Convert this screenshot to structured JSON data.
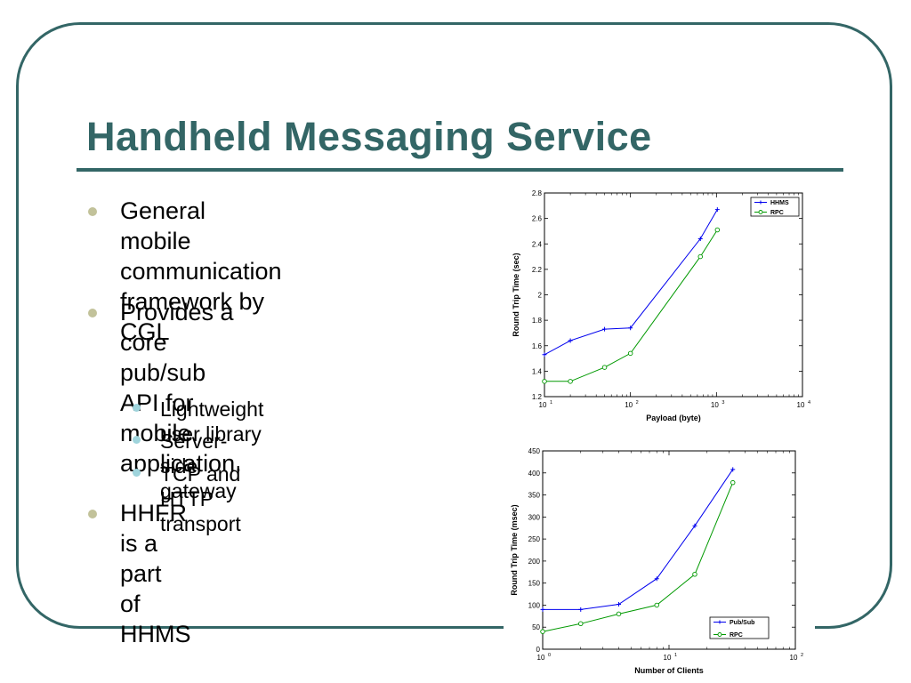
{
  "slide": {
    "title": "Handheld Messaging Service",
    "bullets": [
      {
        "lines": [
          "General mobile",
          "communication",
          "framework by CGL"
        ]
      },
      {
        "lines": [
          "Provides a core pub/sub",
          "API for mobile",
          "application."
        ]
      },
      {
        "lines": [
          "HHFR is a part",
          "of HHMS"
        ]
      }
    ],
    "subbullets": [
      "Lightweight user library",
      "Server-side gateway",
      "TCP and HTTP transport"
    ]
  },
  "colors": {
    "theme": "#336666",
    "bullet": "#c2c29a",
    "subbullet": "#9fd4dc",
    "series_blue": "#0000ee",
    "series_green": "#009900"
  },
  "chart_data": [
    {
      "type": "line",
      "title": "",
      "xlabel": "Payload (byte)",
      "ylabel": "Round Trip Time (sec)",
      "xscale": "log",
      "xlim": [
        10,
        10000
      ],
      "ylim": [
        1.2,
        2.8
      ],
      "x_ticks": [
        "10",
        "10",
        "10",
        "10"
      ],
      "x_tick_exps": [
        "1",
        "2",
        "3",
        "4"
      ],
      "y_ticks": [
        "1.2",
        "1.4",
        "1.6",
        "1.8",
        "2",
        "2.2",
        "2.4",
        "2.6",
        "2.8"
      ],
      "legend": "top-right",
      "series": [
        {
          "name": "HHMS",
          "marker": "plus",
          "x": [
            10,
            20,
            50,
            100,
            650,
            1024
          ],
          "y": [
            1.53,
            1.64,
            1.73,
            1.74,
            2.44,
            2.67
          ]
        },
        {
          "name": "RPC",
          "marker": "circle",
          "x": [
            10,
            20,
            50,
            100,
            650,
            1024
          ],
          "y": [
            1.32,
            1.32,
            1.43,
            1.54,
            2.3,
            2.51
          ]
        }
      ]
    },
    {
      "type": "line",
      "title": "",
      "xlabel": "Number of Clients",
      "ylabel": "Round Trip Time (msec)",
      "xscale": "log",
      "xlim": [
        1,
        100
      ],
      "ylim": [
        0,
        450
      ],
      "x_ticks": [
        "10",
        "10",
        "10"
      ],
      "x_tick_exps": [
        "0",
        "1",
        "2"
      ],
      "y_ticks": [
        "0",
        "50",
        "100",
        "150",
        "200",
        "250",
        "300",
        "350",
        "400",
        "450"
      ],
      "legend": "bottom-right",
      "series": [
        {
          "name": "Pub/Sub",
          "marker": "plus",
          "x": [
            1,
            2,
            4,
            8,
            16,
            32
          ],
          "y": [
            90,
            90,
            102,
            160,
            280,
            408
          ]
        },
        {
          "name": "RPC",
          "marker": "circle",
          "x": [
            1,
            2,
            4,
            8,
            16,
            32
          ],
          "y": [
            40,
            58,
            80,
            100,
            170,
            378
          ]
        }
      ]
    }
  ]
}
